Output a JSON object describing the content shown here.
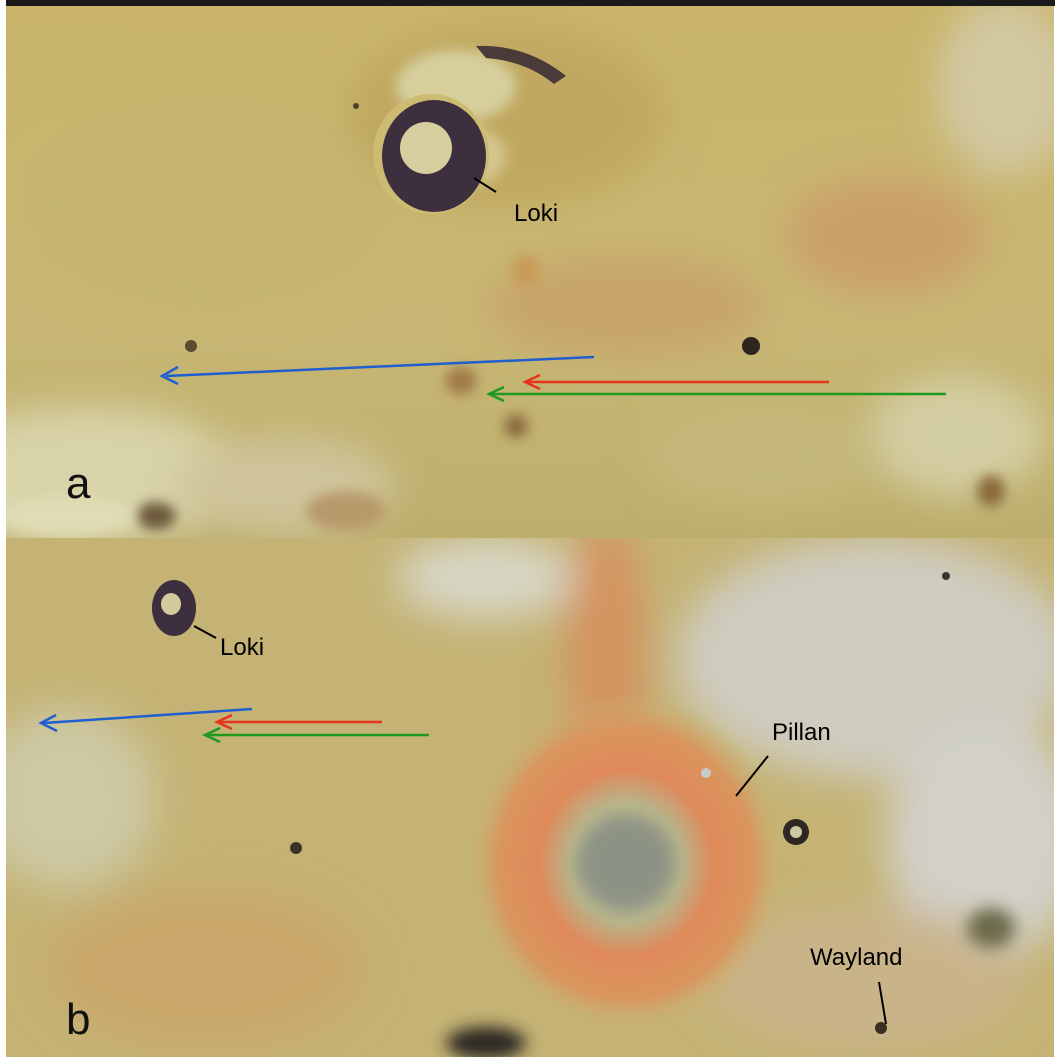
{
  "panels": [
    {
      "label": "a",
      "features": [
        "Loki"
      ],
      "arrows": [
        {
          "color": "#1f5fd0",
          "name": "blue"
        },
        {
          "color": "#e8341c",
          "name": "red"
        },
        {
          "color": "#1f9a1f",
          "name": "green"
        }
      ]
    },
    {
      "label": "b",
      "features": [
        "Loki",
        "Pillan",
        "Wayland"
      ],
      "arrows": [
        {
          "color": "#1f5fd0",
          "name": "blue"
        },
        {
          "color": "#e8341c",
          "name": "red"
        },
        {
          "color": "#1f9a1f",
          "name": "green"
        }
      ]
    }
  ],
  "colors": {
    "terrain_base": "#c6b36a",
    "terrain_light": "#d9d2a6",
    "plume_ring": "#e0895a",
    "dark_patera": "#3a2e3a",
    "label_text": "#000000"
  }
}
